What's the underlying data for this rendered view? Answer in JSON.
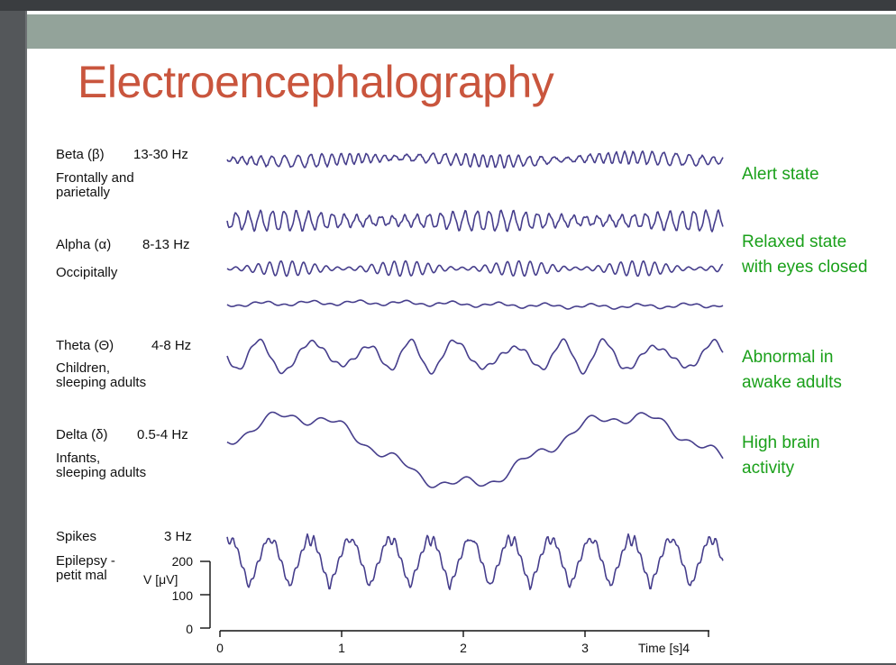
{
  "slide": {
    "title": "Electroencephalography"
  },
  "rhythms": [
    {
      "id": "beta",
      "name": "Beta (β)",
      "freq": "13-30 Hz",
      "location": [
        "Frontally and",
        "parietally"
      ],
      "state": [
        "Alert state"
      ]
    },
    {
      "id": "alpha",
      "name": "Alpha (α)",
      "freq": "8-13 Hz",
      "location": [
        "Occipitally"
      ],
      "state": [
        "Relaxed state",
        "with eyes closed"
      ]
    },
    {
      "id": "theta",
      "name": "Theta (Θ)",
      "freq": "4-8 Hz",
      "location": [
        "Children,",
        "sleeping adults"
      ],
      "state": [
        "Abnormal in",
        "awake adults"
      ]
    },
    {
      "id": "delta",
      "name": "Delta (δ)",
      "freq": "0.5-4 Hz",
      "location": [
        "Infants,",
        "sleeping adults"
      ],
      "state": [
        "High brain",
        "activity"
      ]
    },
    {
      "id": "spikes",
      "name": "Spikes",
      "freq": "3 Hz",
      "location": [
        "Epilepsy -",
        "petit mal"
      ],
      "state": []
    }
  ],
  "axes": {
    "y_label": "V [μV]",
    "y_ticks": [
      "200",
      "100",
      "0"
    ],
    "x_ticks": [
      "0",
      "1",
      "2",
      "3"
    ],
    "x_label": "Time [s]4"
  },
  "colors": {
    "trace": "#463e8c",
    "title": "#c9553d",
    "state": "#1aa01a",
    "band": "#93a39a"
  }
}
